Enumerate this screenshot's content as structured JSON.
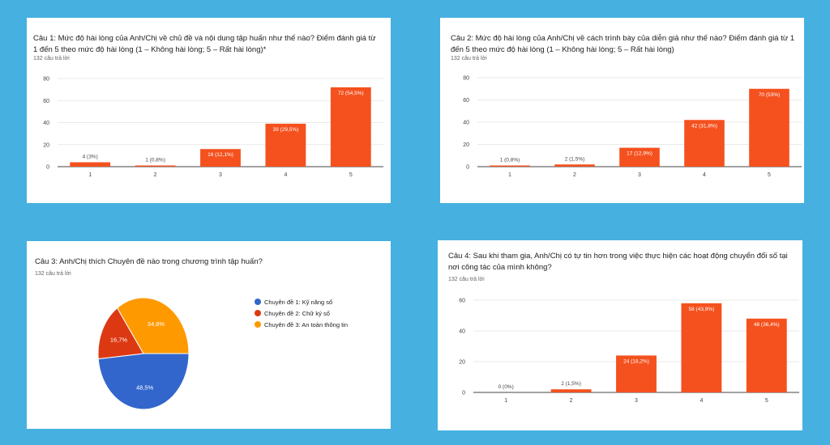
{
  "colors": {
    "bar": "#f4511e",
    "background": "#46b0e1",
    "pie": [
      "#3366cc",
      "#dc3912",
      "#ff9900"
    ]
  },
  "cards": [
    {
      "title": "Câu 1: Mức độ hài lòng của Anh/Chị về chủ đề và nội dung tập huấn như thế nào? Điểm đánh giá từ 1 đến 5 theo mức độ hài lòng (1 – Không hài lòng; 5 – Rất hài lòng)*",
      "count": "132 câu trả lời"
    },
    {
      "title": "Câu 2: Mức độ hài lòng của Anh/Chị về cách trình bày của diễn giả như thế nào? Điểm đánh giá từ 1 đến 5 theo mức độ hài lòng (1 – Không hài lòng; 5 – Rất hài lòng)",
      "count": "132 câu trả lời"
    },
    {
      "title": "Câu 3: Anh/Chị thích Chuyên đề nào trong chương trình tập huấn?",
      "count": "132 câu trả lời"
    },
    {
      "title": "Câu 4: Sau khi tham gia, Anh/Chị có tự tin hơn trong việc thực hiện các hoạt động chuyển đổi số tại nơi công tác của mình không?",
      "count": "132 câu trả lời"
    }
  ],
  "chart_data": [
    {
      "type": "bar",
      "categories": [
        "1",
        "2",
        "3",
        "4",
        "5"
      ],
      "values": [
        4,
        1,
        16,
        39,
        72
      ],
      "labels": [
        "4 (3%)",
        "1 (0,8%)",
        "16 (12,1%)",
        "39 (29,5%)",
        "72 (54,5%)"
      ],
      "yticks": [
        0,
        20,
        40,
        60,
        80
      ],
      "ylim": [
        0,
        80
      ]
    },
    {
      "type": "bar",
      "categories": [
        "1",
        "2",
        "3",
        "4",
        "5"
      ],
      "values": [
        1,
        2,
        17,
        42,
        70
      ],
      "labels": [
        "1 (0,8%)",
        "2 (1,5%)",
        "17 (12,9%)",
        "42 (31,8%)",
        "70 (53%)"
      ],
      "yticks": [
        0,
        20,
        40,
        60,
        80
      ],
      "ylim": [
        0,
        80
      ]
    },
    {
      "type": "pie",
      "categories": [
        "Chuyên đề 1: Kỹ năng số",
        "Chuyên đề 2: Chữ ký số",
        "Chuyên đề 3: An toàn thông tin"
      ],
      "values": [
        48.5,
        16.7,
        34.8
      ],
      "labels": [
        "48,5%",
        "16,7%",
        "34,8%"
      ]
    },
    {
      "type": "bar",
      "categories": [
        "1",
        "2",
        "3",
        "4",
        "5"
      ],
      "values": [
        0,
        2,
        24,
        58,
        48
      ],
      "labels": [
        "0 (0%)",
        "2 (1,5%)",
        "24 (18,2%)",
        "58 (43,9%)",
        "48 (36,4%)"
      ],
      "yticks": [
        0,
        20,
        40,
        60
      ],
      "ylim": [
        0,
        60
      ]
    }
  ]
}
